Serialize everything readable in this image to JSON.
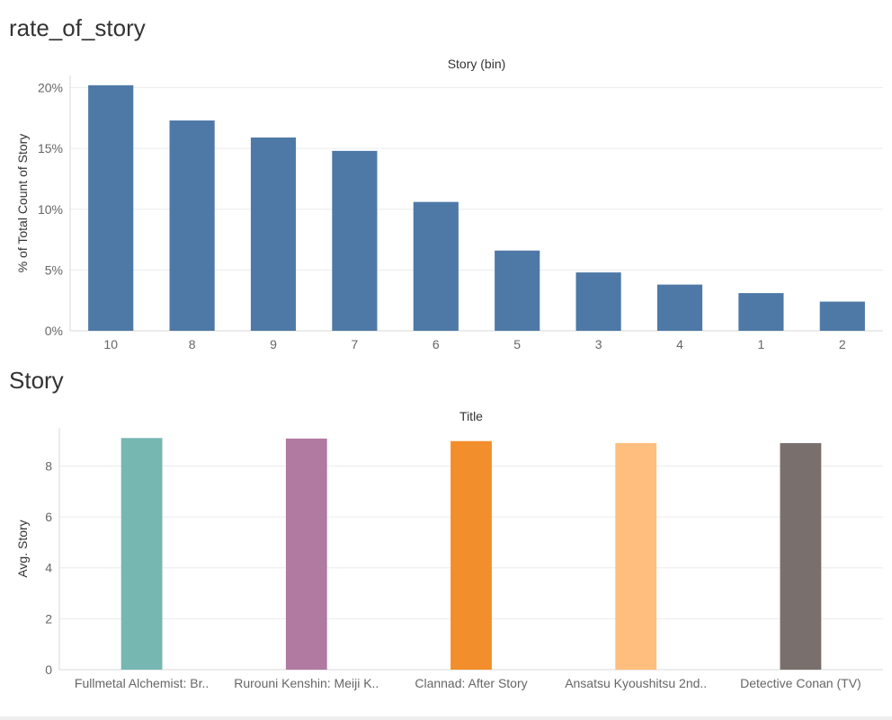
{
  "charts": {
    "rate": {
      "sheet_title": "rate_of_story"
    },
    "story": {
      "sheet_title": "Story"
    }
  },
  "chart_data": [
    {
      "type": "bar",
      "title": "rate_of_story",
      "column_header": "Story (bin)",
      "ylabel": "% of Total Count of Story",
      "xlabel": "",
      "categories": [
        "10",
        "8",
        "9",
        "7",
        "6",
        "5",
        "3",
        "4",
        "1",
        "2"
      ],
      "values": [
        20.2,
        17.3,
        15.9,
        14.8,
        10.6,
        6.6,
        4.8,
        3.8,
        3.1,
        2.4
      ],
      "value_format": "percent",
      "ylim": [
        0,
        21
      ],
      "yticks": [
        0,
        5,
        10,
        15,
        20
      ],
      "ytick_labels": [
        "0%",
        "5%",
        "10%",
        "15%",
        "20%"
      ],
      "grid": true,
      "bar_color": "#4e79a7"
    },
    {
      "type": "bar",
      "title": "Story",
      "column_header": "Title",
      "ylabel": "Avg. Story",
      "xlabel": "",
      "categories": [
        "Fullmetal Alchemist: Br..",
        "Rurouni Kenshin: Meiji K..",
        "Clannad: After Story",
        "Ansatsu Kyoushitsu 2nd..",
        "Detective Conan (TV)"
      ],
      "values": [
        9.1,
        9.08,
        8.98,
        8.9,
        8.9
      ],
      "ylim": [
        0,
        9.5
      ],
      "yticks": [
        0,
        2,
        4,
        6,
        8
      ],
      "ytick_labels": [
        "0",
        "2",
        "4",
        "6",
        "8"
      ],
      "grid": true,
      "bar_colors": [
        "#76b7b2",
        "#b07aa1",
        "#f28e2b",
        "#ffbe7d",
        "#79706e"
      ]
    }
  ]
}
